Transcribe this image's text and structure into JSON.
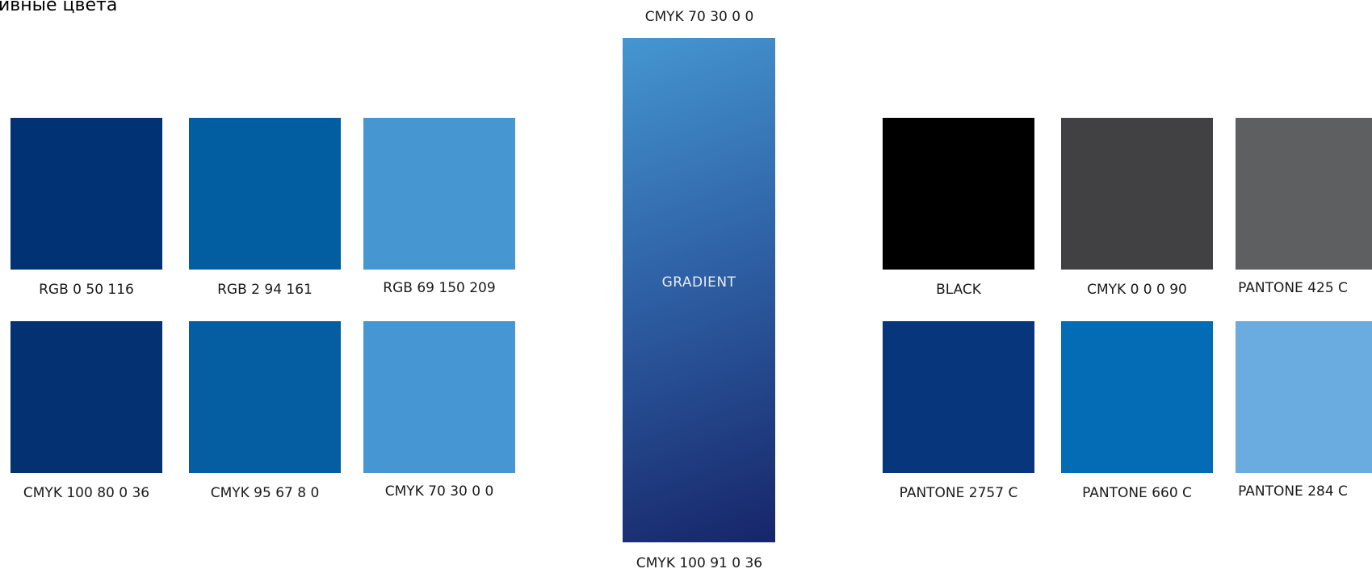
{
  "heading": "ивные цвета",
  "left_grid": {
    "rows": [
      [
        {
          "color": "#003274",
          "label": "RGB 0 50 116"
        },
        {
          "color": "#025EA1",
          "label": "RGB 2 94 161"
        },
        {
          "color": "#4596D1",
          "label": "RGB 69 150 209"
        }
      ],
      [
        {
          "color": "#033171",
          "label": "CMYK 100 80 0 36"
        },
        {
          "color": "#045EA1",
          "label": "CMYK 95 67 8 0"
        },
        {
          "color": "#4696D3",
          "label": "CMYK 70 30 0 0"
        }
      ]
    ]
  },
  "gradient": {
    "top_label": "CMYK 70 30 0 0",
    "center_label": "GRADIENT",
    "bottom_label": "CMYK 100 91 0 36",
    "color_start": "#4596D1",
    "color_mid": "#2F62A7",
    "color_end": "#172569"
  },
  "right_grid": {
    "rows": [
      [
        {
          "color": "#000000",
          "label": "BLACK"
        },
        {
          "color": "#414143",
          "label": "CMYK 0 0 0 90"
        },
        {
          "color": "#5E5F61",
          "label": "PANTONE 425 C"
        }
      ],
      [
        {
          "color": "#08367C",
          "label": "PANTONE 2757 C"
        },
        {
          "color": "#046BB5",
          "label": "PANTONE 660 C"
        },
        {
          "color": "#6AACDF",
          "label": "PANTONE 284 C"
        }
      ]
    ]
  }
}
